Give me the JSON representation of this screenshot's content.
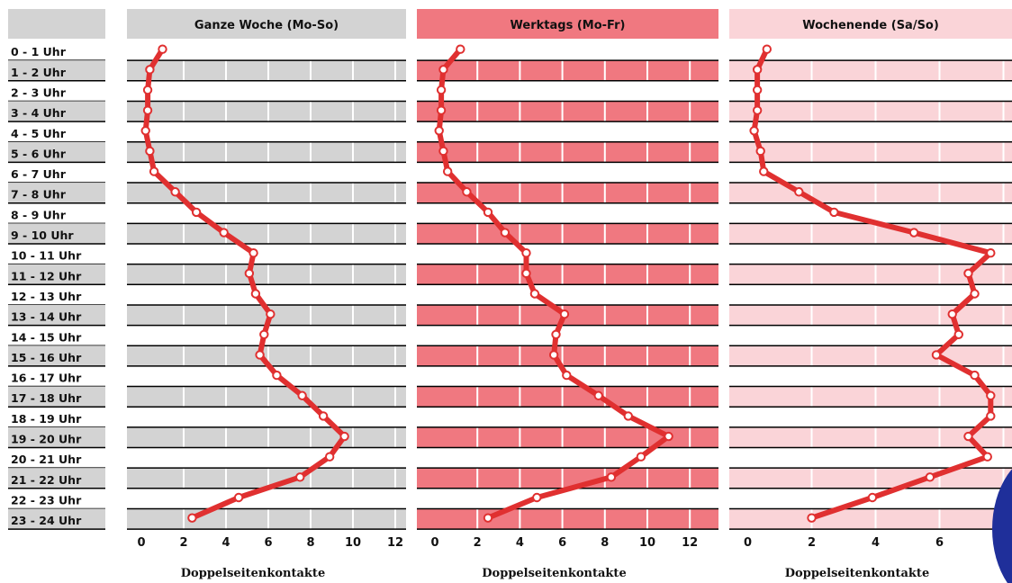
{
  "chart_data": {
    "type": "line",
    "categories": [
      "0 - 1 Uhr",
      "1 - 2 Uhr",
      "2 - 3 Uhr",
      "3 - 4 Uhr",
      "4 - 5 Uhr",
      "5 - 6 Uhr",
      "6 - 7 Uhr",
      "7 - 8 Uhr",
      "8 - 9 Uhr",
      "9 - 10 Uhr",
      "10 - 11 Uhr",
      "11 - 12 Uhr",
      "12 - 13 Uhr",
      "13 - 14 Uhr",
      "14 - 15 Uhr",
      "15 - 16 Uhr",
      "16 - 17 Uhr",
      "17 - 18 Uhr",
      "18 - 19 Uhr",
      "19 - 20 Uhr",
      "20 - 21 Uhr",
      "21 - 22 Uhr",
      "22 - 23 Uhr",
      "23 - 24 Uhr"
    ],
    "panels": [
      {
        "title": "Ganze Woche (Mo-So)",
        "xlabel": "Doppelseitenkontakte",
        "xticks": [
          "0",
          "2",
          "4",
          "6",
          "8",
          "10",
          "12"
        ],
        "xlim": [
          0,
          12.5
        ],
        "values": [
          1.0,
          0.4,
          0.3,
          0.3,
          0.2,
          0.4,
          0.6,
          1.6,
          2.6,
          3.9,
          5.3,
          5.1,
          5.4,
          6.1,
          5.8,
          5.6,
          6.4,
          7.6,
          8.6,
          9.6,
          8.9,
          7.5,
          4.6,
          2.4
        ],
        "colors": {
          "header": "#d3d3d3",
          "band": "#d3d3d3",
          "line": "#e03030"
        }
      },
      {
        "title": "Werktags (Mo-Fr)",
        "xlabel": "Doppelseitenkontakte",
        "xticks": [
          "0",
          "2",
          "4",
          "6",
          "8",
          "10",
          "12"
        ],
        "xlim": [
          0,
          13.5
        ],
        "values": [
          1.2,
          0.4,
          0.3,
          0.3,
          0.2,
          0.4,
          0.6,
          1.5,
          2.5,
          3.3,
          4.3,
          4.3,
          4.7,
          6.1,
          5.7,
          5.6,
          6.2,
          7.7,
          9.1,
          11.0,
          9.7,
          8.3,
          4.8,
          2.5
        ],
        "colors": {
          "header": "#f07880",
          "band": "#f07880",
          "line": "#e03030"
        }
      },
      {
        "title": "Wochenende (Sa/So)",
        "xlabel": "Doppelseitenkontakte",
        "xticks": [
          "0",
          "2",
          "4",
          "6"
        ],
        "xlim": [
          0,
          8.3
        ],
        "values": [
          0.6,
          0.3,
          0.3,
          0.3,
          0.2,
          0.4,
          0.5,
          1.6,
          2.7,
          5.2,
          7.6,
          6.9,
          7.1,
          6.4,
          6.6,
          5.9,
          7.1,
          7.6,
          7.6,
          6.9,
          7.5,
          5.7,
          3.9,
          2.0
        ],
        "colors": {
          "header": "#fad4d8",
          "band": "#fad4d8",
          "line": "#e03030"
        }
      }
    ]
  }
}
